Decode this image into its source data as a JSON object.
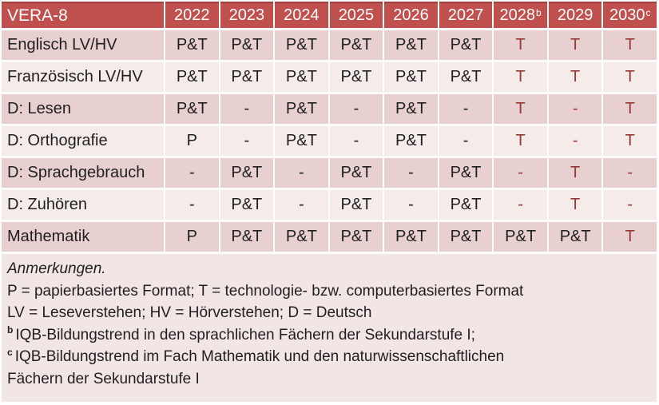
{
  "theme": {
    "header_bg": "#C0504D",
    "header_border": "#A0413E",
    "header_text": "#FFFFFF",
    "row_dark_bg": "#E7D0CF",
    "row_light_bg": "#F5ECEA",
    "notes_bg": "#F2E6E4",
    "accent_red_text": "#953735",
    "body_text": "#1F1F1F"
  },
  "table": {
    "corner_label": "VERA-8",
    "columns": [
      {
        "label": "2022",
        "sup": ""
      },
      {
        "label": "2023",
        "sup": ""
      },
      {
        "label": "2024",
        "sup": ""
      },
      {
        "label": "2025",
        "sup": ""
      },
      {
        "label": "2026",
        "sup": ""
      },
      {
        "label": "2027",
        "sup": ""
      },
      {
        "label": "2028",
        "sup": "b"
      },
      {
        "label": "2029",
        "sup": ""
      },
      {
        "label": "2030",
        "sup": "c"
      }
    ],
    "rows": [
      {
        "label": "Englisch LV/HV",
        "shade": "dark",
        "cells": [
          {
            "text": "P&T",
            "red": false
          },
          {
            "text": "P&T",
            "red": false
          },
          {
            "text": "P&T",
            "red": false
          },
          {
            "text": "P&T",
            "red": false
          },
          {
            "text": "P&T",
            "red": false
          },
          {
            "text": "P&T",
            "red": false
          },
          {
            "text": "T",
            "red": true
          },
          {
            "text": "T",
            "red": true
          },
          {
            "text": "T",
            "red": true
          }
        ]
      },
      {
        "label": "Französisch LV/HV",
        "shade": "light",
        "cells": [
          {
            "text": "P&T",
            "red": false
          },
          {
            "text": "P&T",
            "red": false
          },
          {
            "text": "P&T",
            "red": false
          },
          {
            "text": "P&T",
            "red": false
          },
          {
            "text": "P&T",
            "red": false
          },
          {
            "text": "P&T",
            "red": false
          },
          {
            "text": "T",
            "red": true
          },
          {
            "text": "T",
            "red": true
          },
          {
            "text": "T",
            "red": true
          }
        ]
      },
      {
        "label": "D: Lesen",
        "shade": "dark",
        "cells": [
          {
            "text": "P&T",
            "red": false
          },
          {
            "text": "-",
            "red": false
          },
          {
            "text": "P&T",
            "red": false
          },
          {
            "text": "-",
            "red": false
          },
          {
            "text": "P&T",
            "red": false
          },
          {
            "text": "-",
            "red": false
          },
          {
            "text": "T",
            "red": true
          },
          {
            "text": "-",
            "red": true
          },
          {
            "text": "T",
            "red": true
          }
        ]
      },
      {
        "label": "D: Orthografie",
        "shade": "light",
        "cells": [
          {
            "text": "P",
            "red": false
          },
          {
            "text": "-",
            "red": false
          },
          {
            "text": "P&T",
            "red": false
          },
          {
            "text": "-",
            "red": false
          },
          {
            "text": "P&T",
            "red": false
          },
          {
            "text": "-",
            "red": false
          },
          {
            "text": "T",
            "red": true
          },
          {
            "text": "-",
            "red": true
          },
          {
            "text": "T",
            "red": true
          }
        ]
      },
      {
        "label": "D: Sprachgebrauch",
        "shade": "dark",
        "cells": [
          {
            "text": "-",
            "red": false
          },
          {
            "text": "P&T",
            "red": false
          },
          {
            "text": "-",
            "red": false
          },
          {
            "text": "P&T",
            "red": false
          },
          {
            "text": "-",
            "red": false
          },
          {
            "text": "P&T",
            "red": false
          },
          {
            "text": "-",
            "red": true
          },
          {
            "text": "T",
            "red": true
          },
          {
            "text": "-",
            "red": true
          }
        ]
      },
      {
        "label": "D: Zuhören",
        "shade": "light",
        "cells": [
          {
            "text": "-",
            "red": false
          },
          {
            "text": "P&T",
            "red": false
          },
          {
            "text": "-",
            "red": false
          },
          {
            "text": "P&T",
            "red": false
          },
          {
            "text": "-",
            "red": false
          },
          {
            "text": "P&T",
            "red": false
          },
          {
            "text": "-",
            "red": true
          },
          {
            "text": "T",
            "red": true
          },
          {
            "text": "-",
            "red": true
          }
        ]
      },
      {
        "label": "Mathematik",
        "shade": "dark",
        "cells": [
          {
            "text": "P",
            "red": false
          },
          {
            "text": "P&T",
            "red": false
          },
          {
            "text": "P&T",
            "red": false
          },
          {
            "text": "P&T",
            "red": false
          },
          {
            "text": "P&T",
            "red": false
          },
          {
            "text": "P&T",
            "red": false
          },
          {
            "text": "P&T",
            "red": false
          },
          {
            "text": "P&T",
            "red": false
          },
          {
            "text": "T",
            "red": true
          }
        ]
      }
    ]
  },
  "notes": {
    "heading": "Anmerkungen.",
    "lines": [
      {
        "sup": "",
        "text": "P = papierbasiertes Format; T = technologie- bzw. computerbasiertes Format"
      },
      {
        "sup": "",
        "text": "LV = Leseverstehen; HV = Hörverstehen; D = Deutsch"
      },
      {
        "sup": "b",
        "text": "IQB-Bildungstrend in den sprachlichen Fächern der Sekundarstufe I;"
      },
      {
        "sup": "c",
        "text": "IQB-Bildungstrend im Fach Mathematik und den naturwissenschaftlichen"
      },
      {
        "sup": "",
        "text": "Fächern der Sekundarstufe I"
      }
    ]
  }
}
